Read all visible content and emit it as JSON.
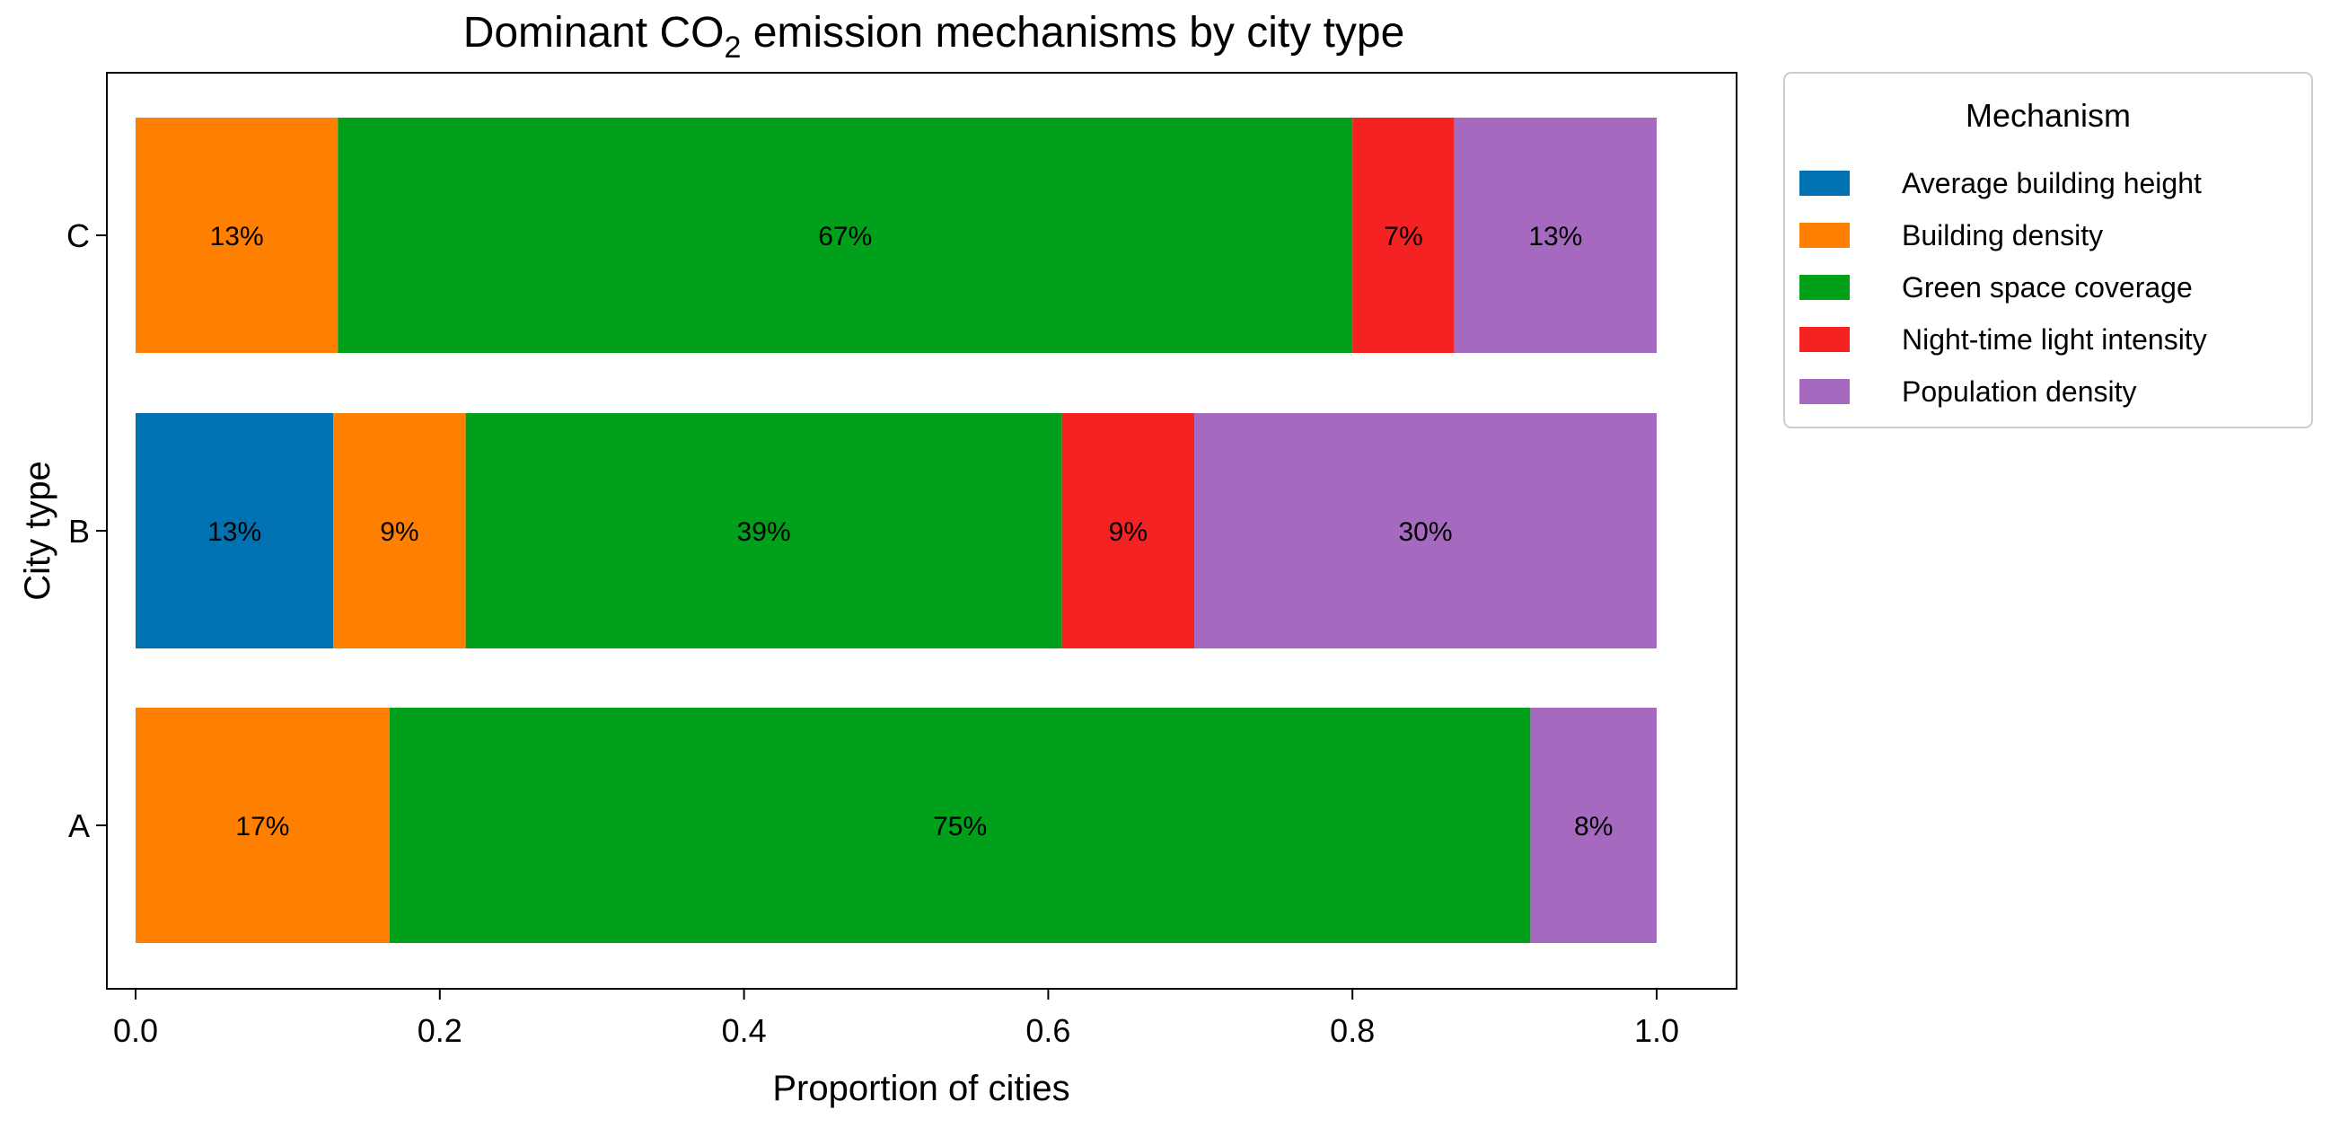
{
  "chart_data": {
    "type": "bar",
    "orientation": "horizontal",
    "stacked": true,
    "title_main": "Dominant CO",
    "title_sub": "2",
    "title_rest": " emission mechanisms by city type",
    "xlabel": "Proportion of cities",
    "ylabel": "City type",
    "xlim": [
      0.0,
      1.05
    ],
    "xticks": [
      "0.0",
      "0.2",
      "0.4",
      "0.6",
      "0.8",
      "1.0"
    ],
    "xtick_values": [
      0.0,
      0.2,
      0.4,
      0.6,
      0.8,
      1.0
    ],
    "categories": [
      "A",
      "B",
      "C"
    ],
    "series": [
      {
        "name": "Average building height",
        "color": "#0072b2",
        "values": [
          0.0,
          0.13,
          0.0
        ],
        "labels": [
          "",
          "13%",
          ""
        ]
      },
      {
        "name": "Building density",
        "color": "#ff7f00",
        "values": [
          0.167,
          0.087,
          0.133
        ],
        "labels": [
          "17%",
          "9%",
          "13%"
        ]
      },
      {
        "name": "Green space coverage",
        "color": "#00a01a",
        "values": [
          0.75,
          0.392,
          0.667
        ],
        "labels": [
          "75%",
          "39%",
          "67%"
        ]
      },
      {
        "name": "Night-time light intensity",
        "color": "#f42222",
        "values": [
          0.0,
          0.087,
          0.067
        ],
        "labels": [
          "",
          "9%",
          "7%"
        ]
      },
      {
        "name": "Population density",
        "color": "#a569bf",
        "values": [
          0.083,
          0.304,
          0.133
        ],
        "labels": [
          "8%",
          "30%",
          "13%"
        ]
      }
    ],
    "legend": {
      "title": "Mechanism",
      "position": "outside-top-right"
    },
    "grid": false
  }
}
